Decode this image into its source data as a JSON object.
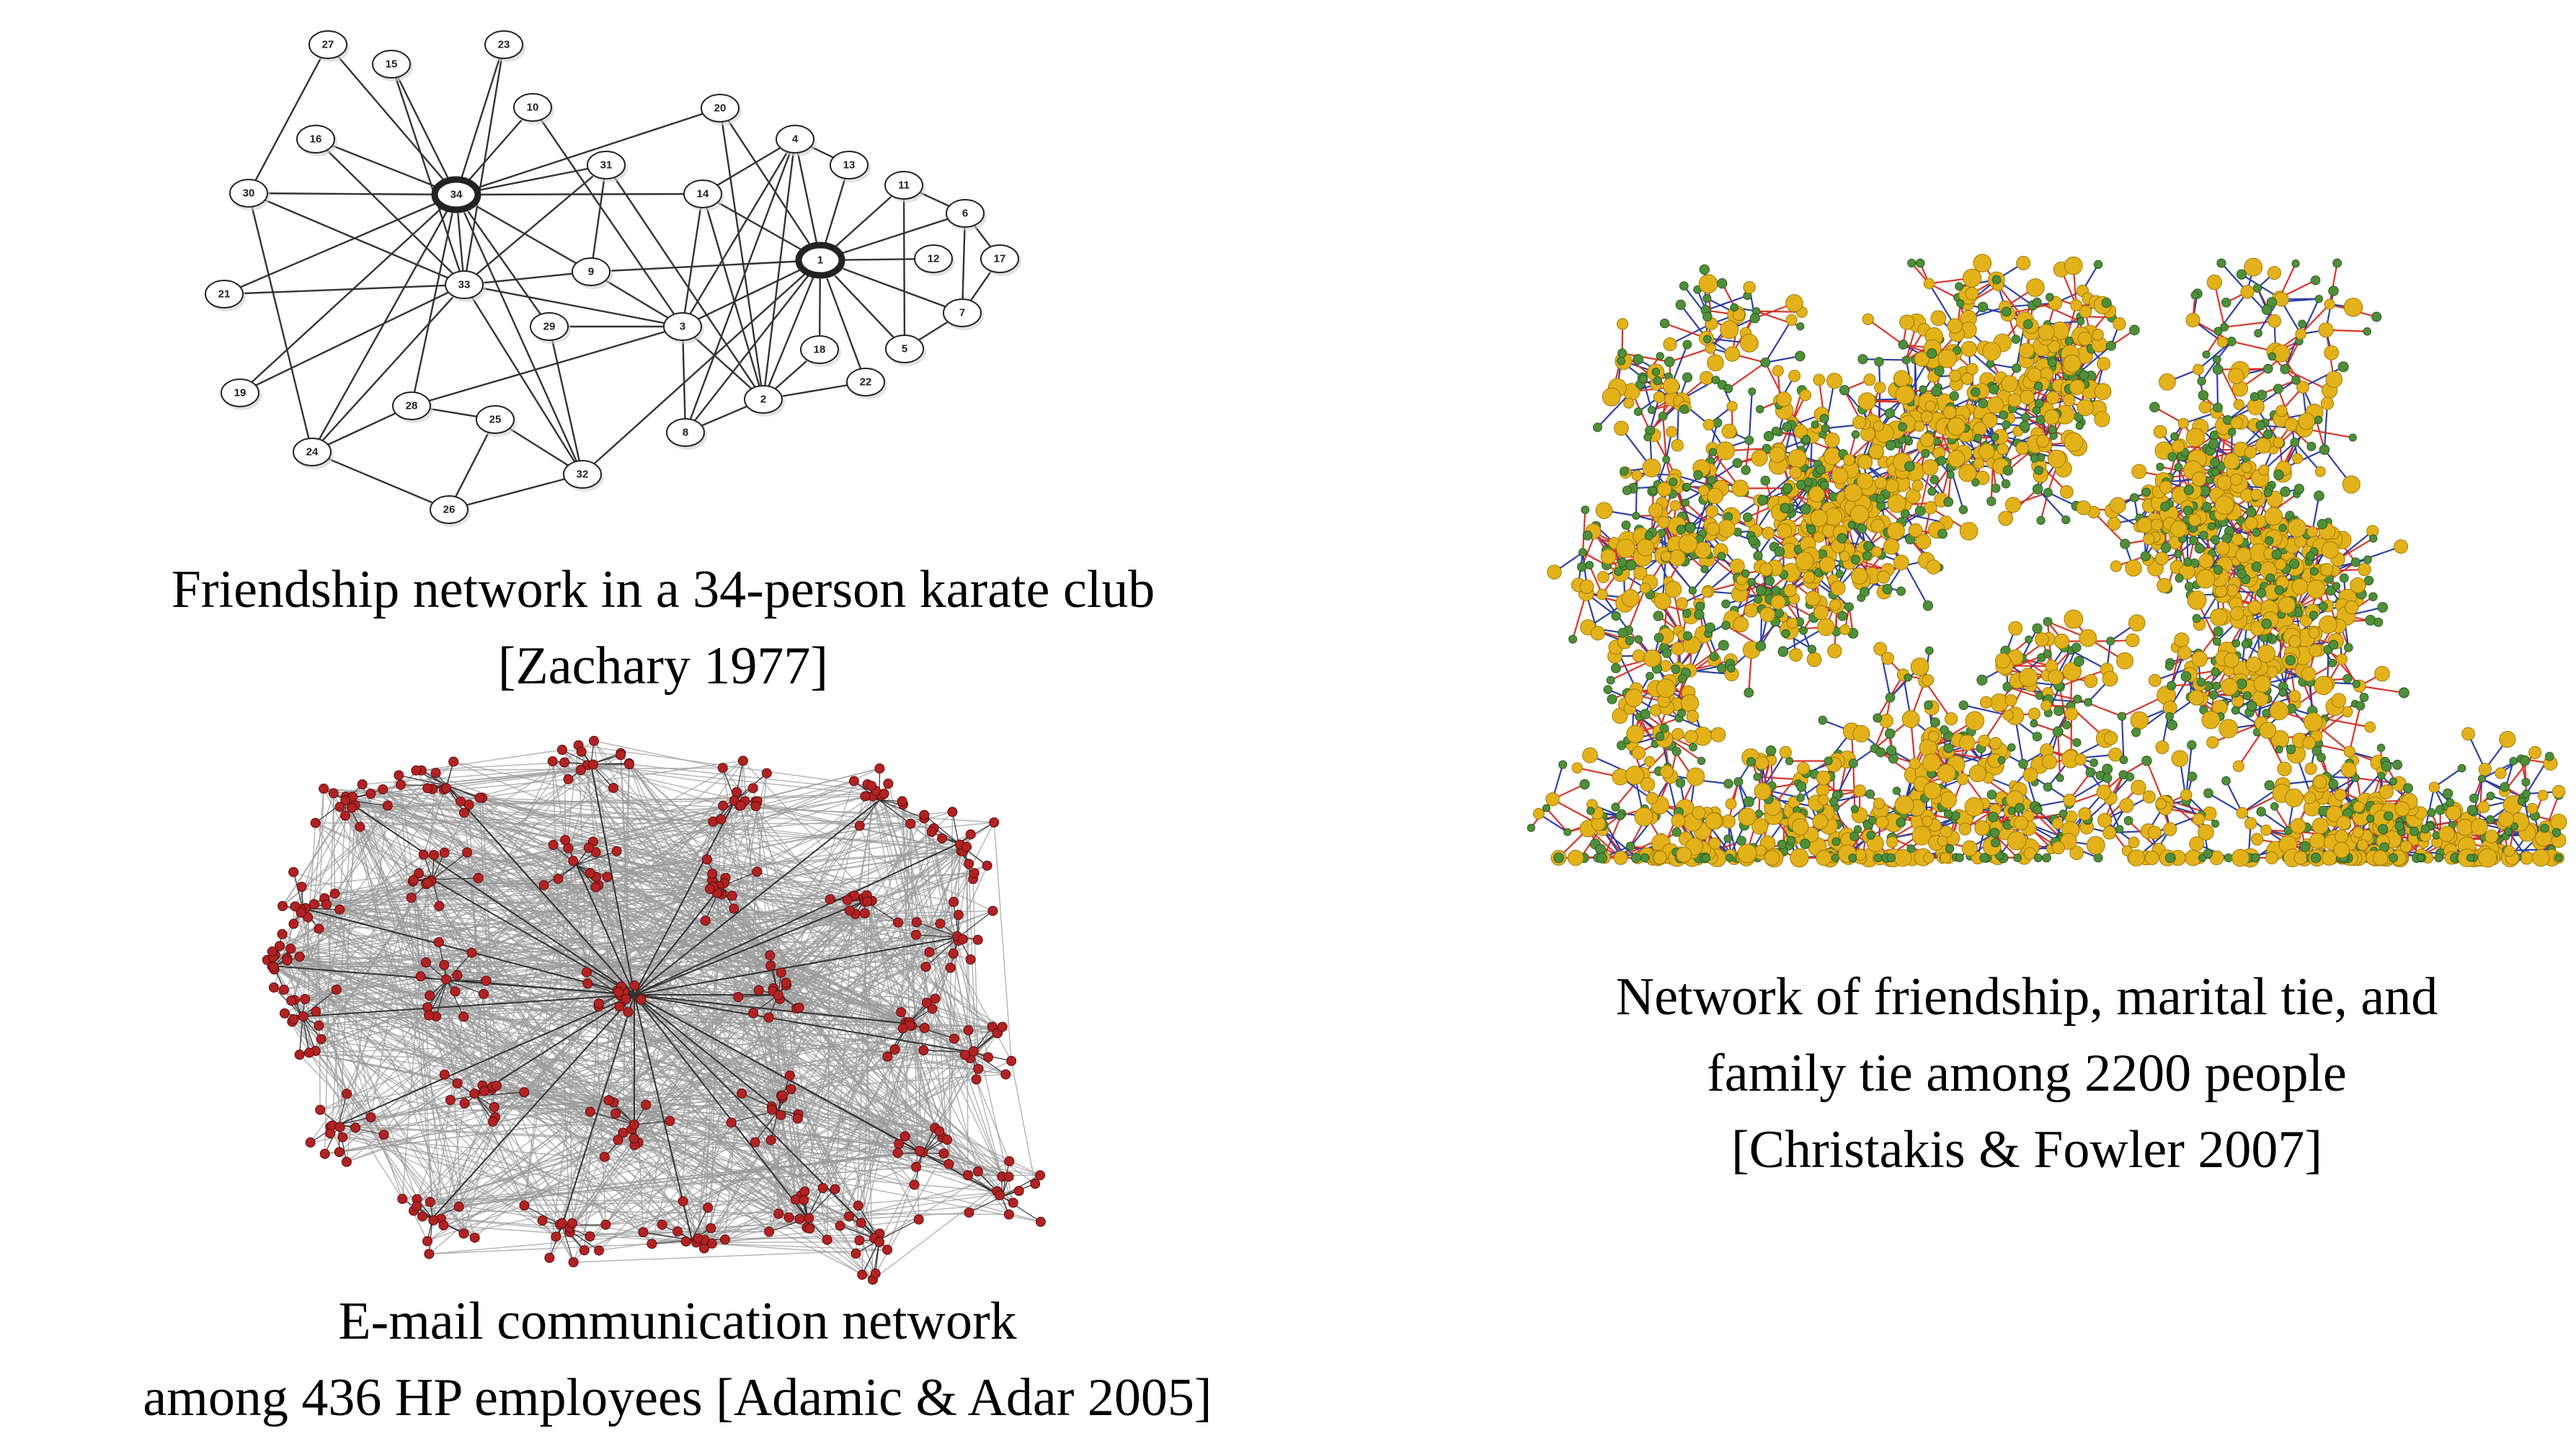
{
  "panels": {
    "karate": {
      "caption_lines": [
        "Friendship network in a 34-person karate club",
        "[Zachary 1977]"
      ],
      "node_labels": [
        "1",
        "2",
        "3",
        "4",
        "5",
        "6",
        "7",
        "8",
        "9",
        "10",
        "11",
        "12",
        "13",
        "14",
        "15",
        "16",
        "17",
        "18",
        "19",
        "20",
        "21",
        "22",
        "23",
        "24",
        "25",
        "26",
        "27",
        "28",
        "29",
        "30",
        "31",
        "32",
        "33",
        "34"
      ],
      "hub_nodes": [
        "1",
        "34"
      ],
      "colors": {
        "edge": "#333333",
        "node_fill": "#ffffff",
        "node_stroke": "#222222"
      }
    },
    "email": {
      "caption_lines": [
        "E-mail communication network",
        "among 436 HP employees [Adamic & Adar 2005]"
      ],
      "node_count": 436,
      "colors": {
        "edge": "#9a9a9a",
        "tree_edge": "#333333",
        "node": "#b22222"
      }
    },
    "christakis": {
      "caption_lines": [
        "Network of friendship, marital tie, and",
        "family tie among 2200 people",
        "[Christakis & Fowler 2007]"
      ],
      "node_count": 2200,
      "colors": {
        "node_primary": "#e3b21a",
        "node_secondary": "#4f8f3a",
        "edge_a": "#2b3fa8",
        "edge_b": "#d8342a"
      }
    }
  }
}
